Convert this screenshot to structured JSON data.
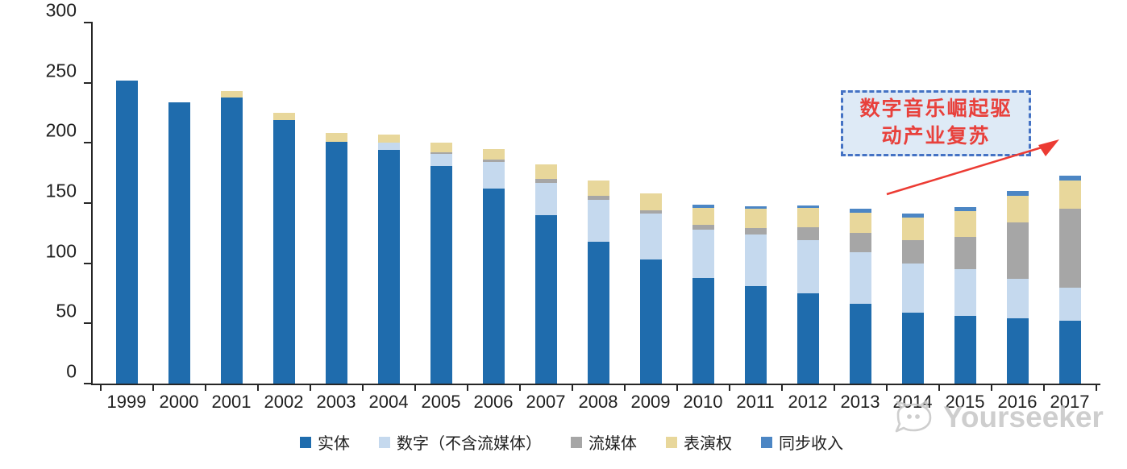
{
  "chart_data": {
    "type": "bar",
    "stacked": true,
    "categories": [
      "1999",
      "2000",
      "2001",
      "2002",
      "2003",
      "2004",
      "2005",
      "2006",
      "2007",
      "2008",
      "2009",
      "2010",
      "2011",
      "2012",
      "2013",
      "2014",
      "2015",
      "2016",
      "2017"
    ],
    "series": [
      {
        "name": "实体",
        "color": "#1F6CAD",
        "values": [
          252,
          234,
          238,
          219,
          201,
          194,
          181,
          162,
          140,
          118,
          103,
          88,
          81,
          75,
          66,
          59,
          56,
          54,
          52
        ]
      },
      {
        "name": "数字（不含流媒体）",
        "color": "#C5D9EE",
        "values": [
          0,
          0,
          0,
          0,
          0,
          6,
          10,
          22,
          27,
          35,
          38,
          40,
          43,
          44,
          43,
          41,
          39,
          33,
          28
        ]
      },
      {
        "name": "流媒体",
        "color": "#A6A6A6",
        "values": [
          0,
          0,
          0,
          0,
          0,
          0,
          1,
          2,
          3,
          3,
          3,
          4,
          5,
          11,
          16,
          19,
          27,
          47,
          65
        ]
      },
      {
        "name": "表演权",
        "color": "#E8D79B",
        "values": [
          0,
          0,
          5,
          6,
          7,
          7,
          8,
          9,
          12,
          13,
          14,
          14,
          16,
          16,
          17,
          19,
          21,
          22,
          24
        ]
      },
      {
        "name": "同步收入",
        "color": "#4C86C4",
        "values": [
          0,
          0,
          0,
          0,
          0,
          0,
          0,
          0,
          0,
          0,
          0,
          3,
          2,
          2,
          3,
          3,
          4,
          4,
          4
        ]
      }
    ],
    "totals": [
      252,
      234,
      243,
      225,
      208,
      207,
      200,
      195,
      182,
      169,
      158,
      149,
      147,
      148,
      145,
      141,
      147,
      160,
      173
    ],
    "ylim": [
      0,
      300
    ],
    "yticks": [
      0,
      50,
      100,
      150,
      200,
      250,
      300
    ],
    "xlabel": "",
    "ylabel": "",
    "title": "",
    "legend_position": "bottom",
    "grid": false,
    "axis_color": "#262626"
  },
  "annotation": {
    "line1": "数字音乐崛起驱",
    "line2": "动产业复苏",
    "full_text": "数字音乐崛起驱动产业复苏",
    "text_color": "#E8413C",
    "box_bg": "#DEEAF6",
    "box_border": "#4472C4",
    "arrow_color": "#EC3B33"
  },
  "watermark": {
    "text": "Yourseeker"
  }
}
